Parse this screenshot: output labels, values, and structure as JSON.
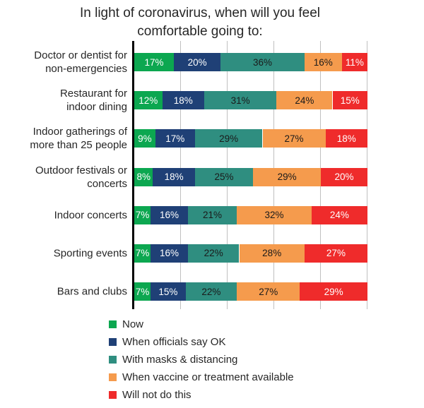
{
  "title": {
    "line1": "In light of coronavirus, when will you feel",
    "line2": "comfortable going to:"
  },
  "chart_data": {
    "type": "bar",
    "stacked": true,
    "orientation": "horizontal",
    "value_suffix": "%",
    "x_axis": {
      "min": 0,
      "max": 100,
      "gridline_step": 20,
      "tick_labels_visible": false
    },
    "grid": true,
    "legend_position": "bottom-left",
    "categories": [
      [
        "Doctor or dentist for",
        "non-emergencies"
      ],
      [
        "Restaurant for",
        "indoor dining"
      ],
      [
        "Indoor gatherings of",
        "more than 25 people"
      ],
      [
        "Outdoor festivals or",
        "concerts"
      ],
      [
        "Indoor concerts"
      ],
      [
        "Sporting events"
      ],
      [
        "Bars and clubs"
      ]
    ],
    "series": [
      {
        "name": "Now",
        "color": "#0ca750",
        "label_color": "#ffffff",
        "values": [
          17,
          12,
          9,
          8,
          7,
          7,
          7
        ]
      },
      {
        "name": "When officials say OK",
        "color": "#1f4076",
        "label_color": "#ffffff",
        "values": [
          20,
          18,
          17,
          18,
          16,
          16,
          15
        ]
      },
      {
        "name": "With masks & distancing",
        "color": "#2f8e80",
        "label_color": "#1a1a1a",
        "values": [
          36,
          31,
          29,
          25,
          21,
          22,
          22
        ]
      },
      {
        "name": "When vaccine or treatment available",
        "color": "#f59b4d",
        "label_color": "#1a1a1a",
        "values": [
          16,
          24,
          27,
          29,
          32,
          28,
          27
        ]
      },
      {
        "name": "Will not do this",
        "color": "#ef2b2b",
        "label_color": "#ffffff",
        "values": [
          11,
          15,
          18,
          20,
          24,
          27,
          29
        ]
      }
    ],
    "colors": {
      "axis": "#000000",
      "gridline": "#c0c0c0",
      "text": "#262626",
      "background": "#ffffff"
    }
  }
}
